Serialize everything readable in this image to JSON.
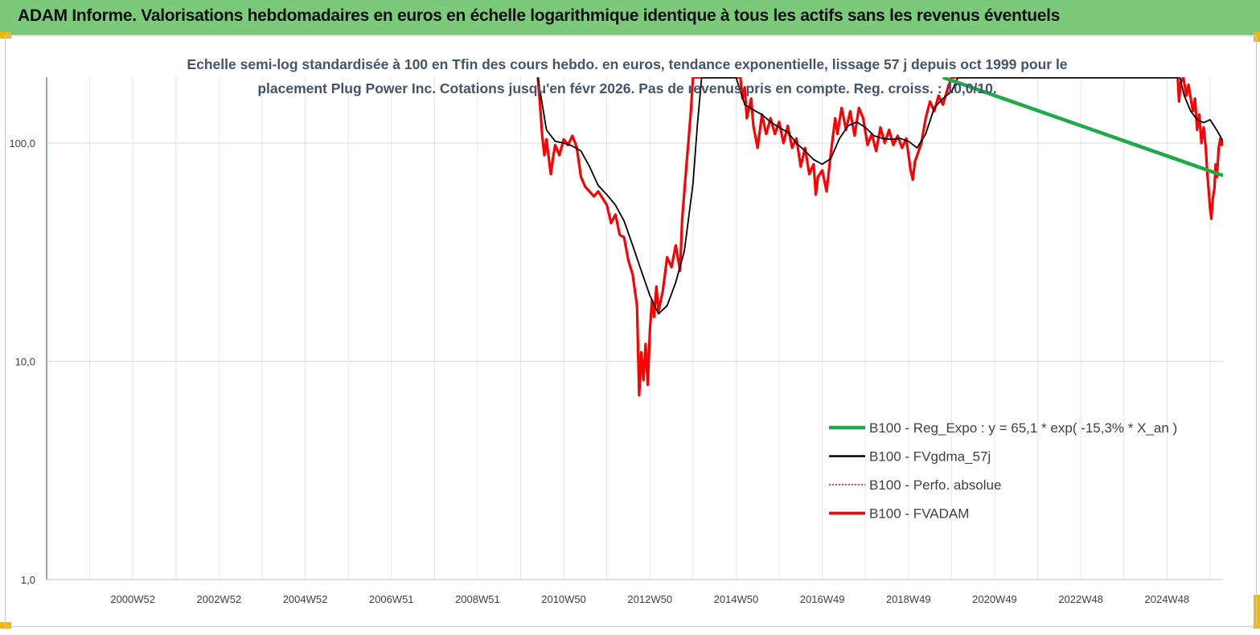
{
  "header": {
    "title": "ADAM Informe. Valorisations hebdomadaires en euros en échelle logarithmique identique à tous les actifs sans les revenus éventuels"
  },
  "colors": {
    "header_bg": "#7dc97c",
    "reg": "#1faa4a",
    "ma": "#000000",
    "perf": "#ff0000",
    "fvadam": "#ff0000",
    "axis": "#2e74b5"
  },
  "chart_data": {
    "type": "line",
    "title_lines": [
      "Echelle semi-log standardisée à 100 en Tfin des cours hebdo. en euros, tendance exponentielle, lissage 57 j depuis oct 1999 pour le",
      "placement Plug Power Inc. Cotations jusqu'en févr 2026. Pas de revenus pris en compte. Reg. croiss. : 10,0/10."
    ],
    "y_scale": "log",
    "ylim": [
      1,
      200
    ],
    "y_ticks": [
      {
        "value": 100,
        "label": "100,0"
      },
      {
        "value": 10,
        "label": "10,0"
      },
      {
        "value": 1,
        "label": "1,0"
      }
    ],
    "xlim": [
      1999.0,
      2026.3
    ],
    "x_ticks": [
      {
        "x": 2001.0,
        "label": "2000W52"
      },
      {
        "x": 2003.0,
        "label": "2002W52"
      },
      {
        "x": 2005.0,
        "label": "2004W52"
      },
      {
        "x": 2007.0,
        "label": "2006W51"
      },
      {
        "x": 2009.0,
        "label": "2008W51"
      },
      {
        "x": 2011.0,
        "label": "2010W50"
      },
      {
        "x": 2013.0,
        "label": "2012W50"
      },
      {
        "x": 2015.0,
        "label": "2014W50"
      },
      {
        "x": 2017.0,
        "label": "2016W49"
      },
      {
        "x": 2019.0,
        "label": "2018W49"
      },
      {
        "x": 2021.0,
        "label": "2020W49"
      },
      {
        "x": 2023.0,
        "label": "2022W48"
      },
      {
        "x": 2025.0,
        "label": "2024W48"
      }
    ],
    "grid": true,
    "legend_position": "bottom-right",
    "series": [
      {
        "name": "B100 - Reg_Expo : y = 65,1 * exp( -15,3% *  X_an )",
        "color": "#1faa4a",
        "style": "solid",
        "points": [
          [
            2019.8,
            200
          ],
          [
            2026.3,
            71
          ]
        ]
      },
      {
        "name": "B100 - FVgdma_57j",
        "color": "#000000",
        "style": "solid",
        "points": [
          [
            2010.4,
            200
          ],
          [
            2010.6,
            115
          ],
          [
            2010.8,
            102
          ],
          [
            2011.0,
            100
          ],
          [
            2011.2,
            97
          ],
          [
            2011.4,
            92
          ],
          [
            2011.6,
            78
          ],
          [
            2011.8,
            64
          ],
          [
            2012.0,
            58
          ],
          [
            2012.2,
            52
          ],
          [
            2012.4,
            44
          ],
          [
            2012.6,
            34
          ],
          [
            2012.8,
            26
          ],
          [
            2013.0,
            20
          ],
          [
            2013.2,
            16.5
          ],
          [
            2013.4,
            18
          ],
          [
            2013.6,
            23
          ],
          [
            2013.8,
            32
          ],
          [
            2014.0,
            65
          ],
          [
            2014.1,
            120
          ],
          [
            2014.2,
            200
          ],
          [
            2015.0,
            200
          ],
          [
            2015.2,
            150
          ],
          [
            2015.4,
            142
          ],
          [
            2015.6,
            135
          ],
          [
            2015.8,
            125
          ],
          [
            2016.0,
            118
          ],
          [
            2016.2,
            112
          ],
          [
            2016.4,
            100
          ],
          [
            2016.6,
            92
          ],
          [
            2016.8,
            84
          ],
          [
            2017.0,
            80
          ],
          [
            2017.2,
            85
          ],
          [
            2017.4,
            105
          ],
          [
            2017.6,
            120
          ],
          [
            2017.8,
            125
          ],
          [
            2018.0,
            118
          ],
          [
            2018.2,
            108
          ],
          [
            2018.4,
            105
          ],
          [
            2018.6,
            104
          ],
          [
            2018.8,
            105
          ],
          [
            2019.0,
            102
          ],
          [
            2019.2,
            95
          ],
          [
            2019.4,
            110
          ],
          [
            2019.6,
            145
          ],
          [
            2019.8,
            160
          ],
          [
            2020.0,
            172
          ],
          [
            2020.15,
            200
          ],
          [
            2025.3,
            200
          ],
          [
            2025.4,
            165
          ],
          [
            2025.55,
            140
          ],
          [
            2025.7,
            128
          ],
          [
            2025.85,
            124
          ],
          [
            2026.0,
            128
          ],
          [
            2026.15,
            115
          ],
          [
            2026.3,
            102
          ]
        ]
      },
      {
        "name": "B100 - Perfo. absolue",
        "color": "#ff0000",
        "style": "dotted",
        "points": []
      },
      {
        "name": "B100 - FVADAM",
        "color": "#ff0000",
        "style": "solid",
        "points": [
          [
            2010.4,
            200
          ],
          [
            2010.45,
            150
          ],
          [
            2010.5,
            108
          ],
          [
            2010.55,
            88
          ],
          [
            2010.6,
            104
          ],
          [
            2010.7,
            72
          ],
          [
            2010.75,
            85
          ],
          [
            2010.8,
            98
          ],
          [
            2010.9,
            88
          ],
          [
            2011.0,
            104
          ],
          [
            2011.1,
            98
          ],
          [
            2011.2,
            108
          ],
          [
            2011.3,
            96
          ],
          [
            2011.4,
            70
          ],
          [
            2011.5,
            63
          ],
          [
            2011.6,
            60
          ],
          [
            2011.7,
            57
          ],
          [
            2011.8,
            60
          ],
          [
            2011.9,
            56
          ],
          [
            2012.0,
            52
          ],
          [
            2012.1,
            43
          ],
          [
            2012.2,
            47
          ],
          [
            2012.3,
            38
          ],
          [
            2012.4,
            37
          ],
          [
            2012.5,
            29
          ],
          [
            2012.6,
            25
          ],
          [
            2012.7,
            18
          ],
          [
            2012.75,
            7.0
          ],
          [
            2012.8,
            11
          ],
          [
            2012.85,
            8.2
          ],
          [
            2012.9,
            12
          ],
          [
            2012.95,
            7.8
          ],
          [
            2013.0,
            14
          ],
          [
            2013.05,
            19
          ],
          [
            2013.1,
            16
          ],
          [
            2013.15,
            22
          ],
          [
            2013.2,
            17
          ],
          [
            2013.3,
            21
          ],
          [
            2013.4,
            30
          ],
          [
            2013.5,
            27
          ],
          [
            2013.6,
            34
          ],
          [
            2013.7,
            26
          ],
          [
            2013.75,
            45
          ],
          [
            2013.8,
            60
          ],
          [
            2013.85,
            80
          ],
          [
            2013.9,
            105
          ],
          [
            2013.95,
            140
          ],
          [
            2014.0,
            200
          ],
          [
            2015.1,
            200
          ],
          [
            2015.15,
            160
          ],
          [
            2015.2,
            180
          ],
          [
            2015.25,
            130
          ],
          [
            2015.35,
            160
          ],
          [
            2015.4,
            120
          ],
          [
            2015.5,
            95
          ],
          [
            2015.6,
            135
          ],
          [
            2015.7,
            110
          ],
          [
            2015.8,
            130
          ],
          [
            2015.9,
            110
          ],
          [
            2016.0,
            125
          ],
          [
            2016.1,
            100
          ],
          [
            2016.2,
            120
          ],
          [
            2016.3,
            95
          ],
          [
            2016.4,
            105
          ],
          [
            2016.5,
            78
          ],
          [
            2016.6,
            95
          ],
          [
            2016.7,
            72
          ],
          [
            2016.8,
            80
          ],
          [
            2016.85,
            58
          ],
          [
            2016.9,
            70
          ],
          [
            2017.0,
            75
          ],
          [
            2017.1,
            60
          ],
          [
            2017.2,
            90
          ],
          [
            2017.3,
            130
          ],
          [
            2017.35,
            110
          ],
          [
            2017.45,
            145
          ],
          [
            2017.55,
            115
          ],
          [
            2017.65,
            140
          ],
          [
            2017.75,
            108
          ],
          [
            2017.85,
            145
          ],
          [
            2017.95,
            130
          ],
          [
            2018.05,
            98
          ],
          [
            2018.15,
            110
          ],
          [
            2018.25,
            92
          ],
          [
            2018.35,
            118
          ],
          [
            2018.45,
            100
          ],
          [
            2018.55,
            115
          ],
          [
            2018.65,
            98
          ],
          [
            2018.75,
            108
          ],
          [
            2018.85,
            95
          ],
          [
            2018.95,
            105
          ],
          [
            2019.05,
            75
          ],
          [
            2019.1,
            68
          ],
          [
            2019.15,
            82
          ],
          [
            2019.3,
            100
          ],
          [
            2019.4,
            130
          ],
          [
            2019.5,
            155
          ],
          [
            2019.6,
            140
          ],
          [
            2019.7,
            165
          ],
          [
            2019.8,
            150
          ],
          [
            2019.9,
            175
          ],
          [
            2020.0,
            200
          ],
          [
            2025.25,
            200
          ],
          [
            2025.28,
            155
          ],
          [
            2025.32,
            190
          ],
          [
            2025.38,
            200
          ],
          [
            2025.45,
            165
          ],
          [
            2025.5,
            185
          ],
          [
            2025.6,
            140
          ],
          [
            2025.65,
            160
          ],
          [
            2025.7,
            115
          ],
          [
            2025.75,
            135
          ],
          [
            2025.8,
            100
          ],
          [
            2025.85,
            118
          ],
          [
            2025.9,
            95
          ],
          [
            2025.93,
            75
          ],
          [
            2025.97,
            60
          ],
          [
            2026.0,
            50
          ],
          [
            2026.03,
            45
          ],
          [
            2026.06,
            55
          ],
          [
            2026.1,
            62
          ],
          [
            2026.13,
            80
          ],
          [
            2026.16,
            70
          ],
          [
            2026.2,
            95
          ],
          [
            2026.24,
            105
          ],
          [
            2026.27,
            98
          ],
          [
            2026.3,
            104
          ]
        ]
      }
    ]
  }
}
